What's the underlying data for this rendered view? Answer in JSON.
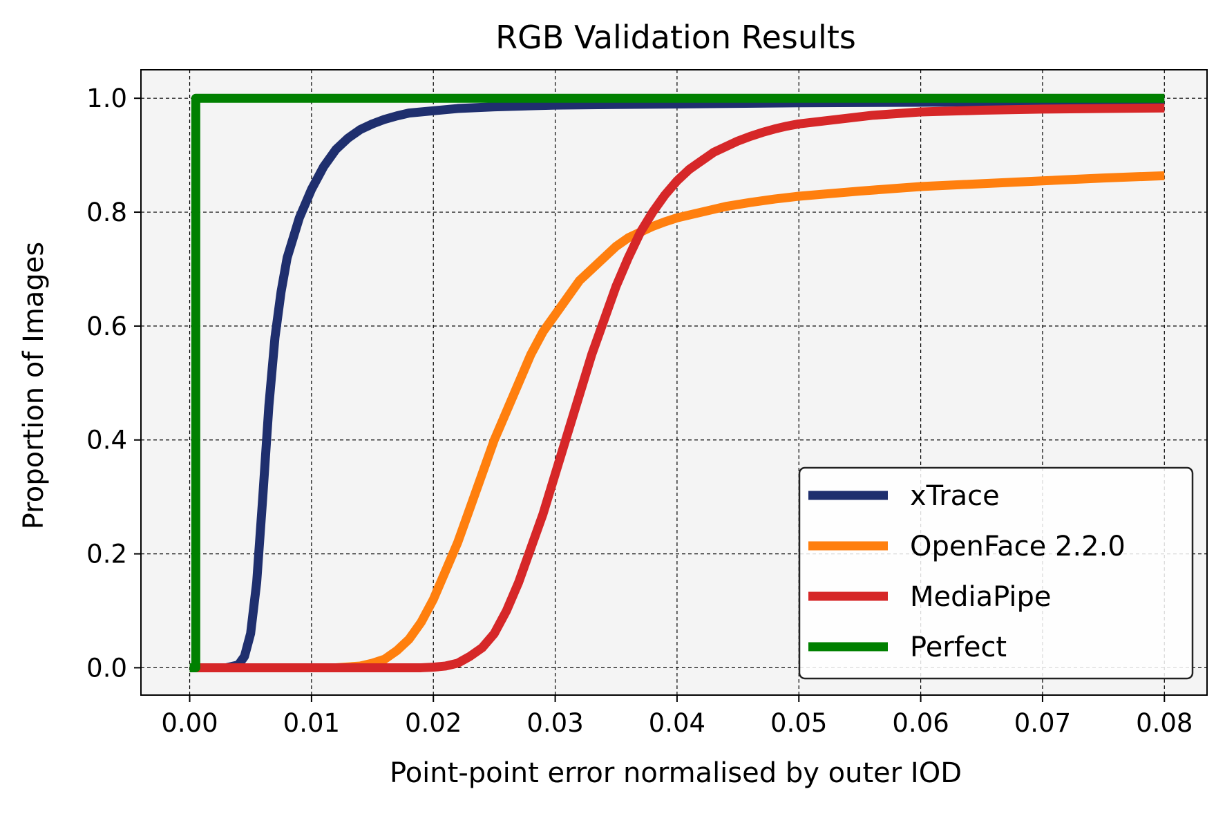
{
  "colors": {
    "background": "#ffffff",
    "plot_background": "#f4f4f4",
    "grid": "#000000",
    "legend_background": "#ffffff",
    "legend_border": "#222222"
  },
  "chart_data": {
    "type": "line",
    "title": "RGB Validation Results",
    "xlabel": "Point-point error normalised by outer IOD",
    "ylabel": "Proportion of Images",
    "xlim": [
      -0.004,
      0.0835
    ],
    "ylim": [
      -0.048,
      1.05
    ],
    "xticks": [
      0.0,
      0.01,
      0.02,
      0.03,
      0.04,
      0.05,
      0.06,
      0.07,
      0.08
    ],
    "xtick_labels": [
      "0.00",
      "0.01",
      "0.02",
      "0.03",
      "0.04",
      "0.05",
      "0.06",
      "0.07",
      "0.08"
    ],
    "yticks": [
      0.0,
      0.2,
      0.4,
      0.6,
      0.8,
      1.0
    ],
    "ytick_labels": [
      "0.0",
      "0.2",
      "0.4",
      "0.6",
      "0.8",
      "1.0"
    ],
    "grid": true,
    "grid_style": "dashed",
    "legend_position": "lower-right",
    "series": [
      {
        "name": "xTrace",
        "color": "#1f2f6e",
        "x": [
          0.0,
          0.003,
          0.004,
          0.0045,
          0.005,
          0.0055,
          0.006,
          0.0065,
          0.007,
          0.0075,
          0.008,
          0.009,
          0.01,
          0.011,
          0.012,
          0.013,
          0.014,
          0.015,
          0.016,
          0.017,
          0.018,
          0.02,
          0.022,
          0.025,
          0.03,
          0.04,
          0.05,
          0.06,
          0.07,
          0.08
        ],
        "y": [
          0.0,
          0.0,
          0.005,
          0.02,
          0.06,
          0.15,
          0.3,
          0.46,
          0.58,
          0.66,
          0.72,
          0.79,
          0.84,
          0.88,
          0.91,
          0.93,
          0.945,
          0.955,
          0.963,
          0.969,
          0.974,
          0.978,
          0.982,
          0.985,
          0.988,
          0.99,
          0.992,
          0.993,
          0.994,
          0.995
        ]
      },
      {
        "name": "OpenFace 2.2.0",
        "color": "#ff7f0e",
        "x": [
          0.0,
          0.012,
          0.014,
          0.015,
          0.016,
          0.017,
          0.018,
          0.019,
          0.02,
          0.021,
          0.022,
          0.023,
          0.024,
          0.025,
          0.026,
          0.027,
          0.028,
          0.029,
          0.03,
          0.031,
          0.032,
          0.033,
          0.034,
          0.035,
          0.036,
          0.037,
          0.038,
          0.039,
          0.04,
          0.042,
          0.044,
          0.046,
          0.048,
          0.05,
          0.055,
          0.06,
          0.065,
          0.07,
          0.075,
          0.08
        ],
        "y": [
          0.0,
          0.0,
          0.003,
          0.008,
          0.015,
          0.03,
          0.05,
          0.08,
          0.12,
          0.17,
          0.22,
          0.28,
          0.34,
          0.4,
          0.45,
          0.5,
          0.55,
          0.59,
          0.62,
          0.65,
          0.68,
          0.7,
          0.72,
          0.74,
          0.755,
          0.765,
          0.775,
          0.783,
          0.79,
          0.8,
          0.81,
          0.817,
          0.823,
          0.828,
          0.837,
          0.845,
          0.85,
          0.855,
          0.86,
          0.864
        ]
      },
      {
        "name": "MediaPipe",
        "color": "#d62728",
        "x": [
          0.0,
          0.019,
          0.02,
          0.021,
          0.022,
          0.023,
          0.024,
          0.025,
          0.026,
          0.027,
          0.028,
          0.029,
          0.03,
          0.031,
          0.032,
          0.033,
          0.034,
          0.035,
          0.036,
          0.037,
          0.038,
          0.039,
          0.04,
          0.041,
          0.042,
          0.043,
          0.044,
          0.045,
          0.046,
          0.047,
          0.048,
          0.049,
          0.05,
          0.052,
          0.054,
          0.056,
          0.058,
          0.06,
          0.065,
          0.07,
          0.075,
          0.08
        ],
        "y": [
          0.0,
          0.0,
          0.001,
          0.003,
          0.008,
          0.02,
          0.035,
          0.06,
          0.1,
          0.15,
          0.21,
          0.27,
          0.34,
          0.41,
          0.48,
          0.55,
          0.61,
          0.67,
          0.72,
          0.765,
          0.8,
          0.83,
          0.855,
          0.875,
          0.89,
          0.905,
          0.915,
          0.925,
          0.933,
          0.94,
          0.946,
          0.951,
          0.955,
          0.96,
          0.965,
          0.97,
          0.973,
          0.976,
          0.979,
          0.981,
          0.982,
          0.983
        ]
      },
      {
        "name": "Perfect",
        "color": "#008000",
        "x": [
          0.0,
          0.0005,
          0.0005,
          0.08
        ],
        "y": [
          0.0,
          0.0,
          1.0,
          1.0
        ]
      }
    ]
  }
}
